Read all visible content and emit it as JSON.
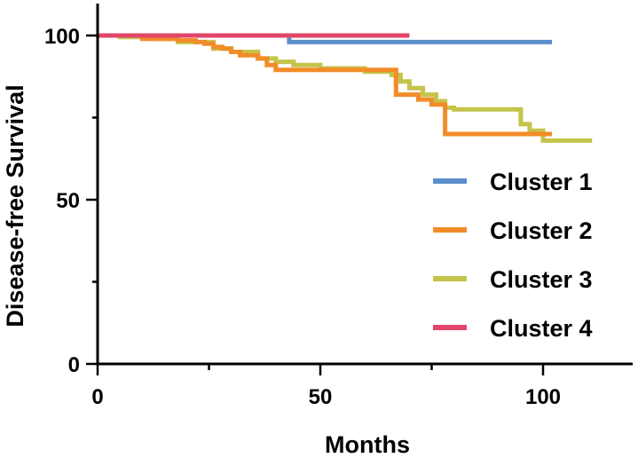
{
  "chart_data": {
    "type": "line",
    "step": true,
    "xlabel": "Months",
    "ylabel": "Disease-free Survival",
    "xlim": [
      0,
      120
    ],
    "ylim": [
      0,
      105
    ],
    "xticks": [
      0,
      50,
      100
    ],
    "xminor_ticks": [
      25,
      75
    ],
    "yticks": [
      0,
      50,
      100
    ],
    "yminor_ticks": [
      25,
      75
    ],
    "grid": false,
    "legend_position": "right",
    "series": [
      {
        "name": "Cluster 1",
        "color": "#5b8fc9",
        "x": [
          0,
          43,
          43,
          102
        ],
        "y": [
          100,
          100,
          98,
          98
        ]
      },
      {
        "name": "Cluster 2",
        "color": "#f28c28",
        "x": [
          0,
          10,
          10,
          18,
          18,
          22,
          22,
          24,
          24,
          26,
          26,
          28,
          28,
          30,
          30,
          32,
          32,
          36,
          36,
          38,
          38,
          40,
          40,
          67,
          67,
          72,
          72,
          75,
          75,
          78,
          78,
          102
        ],
        "y": [
          100,
          100,
          99,
          99,
          98.5,
          98.5,
          98,
          98,
          97.5,
          97.5,
          96.5,
          96.5,
          96,
          96,
          95,
          95,
          94,
          94,
          93,
          93,
          91,
          91,
          89.5,
          89.5,
          82,
          82,
          80.5,
          80.5,
          79,
          79,
          70,
          70
        ]
      },
      {
        "name": "Cluster 3",
        "color": "#c4c44b",
        "x": [
          0,
          5,
          5,
          12,
          12,
          18,
          18,
          26,
          26,
          30,
          30,
          36,
          36,
          40,
          40,
          44,
          44,
          50,
          50,
          60,
          60,
          66,
          66,
          68,
          68,
          70,
          70,
          73,
          73,
          76,
          76,
          78,
          78,
          80,
          80,
          95,
          95,
          97,
          97,
          100,
          100,
          111
        ],
        "y": [
          100,
          100,
          99.5,
          99.5,
          99,
          99,
          98,
          98,
          96,
          96,
          95,
          95,
          93,
          93,
          92,
          92,
          91,
          91,
          90,
          90,
          89,
          89,
          88,
          88,
          86,
          86,
          84,
          84,
          82,
          82,
          80,
          80,
          78,
          78,
          77.5,
          77.5,
          73,
          73,
          71,
          71,
          68,
          68
        ]
      },
      {
        "name": "Cluster 4",
        "color": "#e2456a",
        "x": [
          0,
          70
        ],
        "y": [
          100,
          100
        ]
      }
    ]
  }
}
